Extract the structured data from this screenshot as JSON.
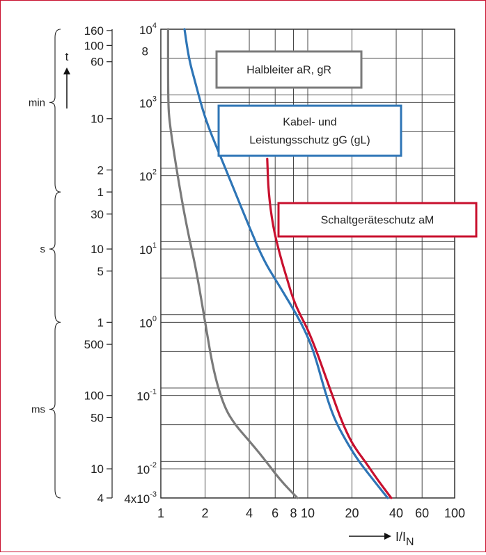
{
  "chart_data": {
    "type": "line",
    "x_scale": "log",
    "y_scale": "log",
    "xlim": [
      1,
      100
    ],
    "ylim": [
      0.004,
      10000
    ],
    "grid": true,
    "xlabel": {
      "base": "I/I",
      "sub": "N"
    },
    "ylabel": "t",
    "x_ticks": [
      "1",
      "2",
      "4",
      "6",
      "8",
      "10",
      "20",
      "40",
      "60",
      "100"
    ],
    "x_tick_values": [
      1,
      2,
      4,
      6,
      8,
      10,
      20,
      40,
      60,
      100
    ],
    "y_power_ticks": [
      {
        "value": 10000,
        "base": "10",
        "exp": "4"
      },
      {
        "value": 1000,
        "base": "10",
        "exp": "3"
      },
      {
        "value": 100,
        "base": "10",
        "exp": "2"
      },
      {
        "value": 10,
        "base": "10",
        "exp": "1"
      },
      {
        "value": 1,
        "base": "10",
        "exp": "0"
      },
      {
        "value": 0.1,
        "base": "10",
        "exp": "-1"
      },
      {
        "value": 0.01,
        "base": "10",
        "exp": "-2"
      },
      {
        "value": 0.004,
        "base": "4x10",
        "exp": "-3"
      }
    ],
    "y_extra_ticks": [
      {
        "value": 5000,
        "label": "8"
      }
    ],
    "time_ticks": [
      {
        "value": 9600,
        "label": "160"
      },
      {
        "value": 6000,
        "label": "100"
      },
      {
        "value": 3600,
        "label": "60"
      },
      {
        "value": 600,
        "label": "10"
      },
      {
        "value": 120,
        "label": "2"
      },
      {
        "value": 60,
        "label": "1"
      },
      {
        "value": 30,
        "label": "30"
      },
      {
        "value": 10,
        "label": "10"
      },
      {
        "value": 5,
        "label": "5"
      },
      {
        "value": 1,
        "label": "1"
      },
      {
        "value": 0.5,
        "label": "500"
      },
      {
        "value": 0.1,
        "label": "100"
      },
      {
        "value": 0.05,
        "label": "50"
      },
      {
        "value": 0.01,
        "label": "10"
      },
      {
        "value": 0.004,
        "label": "4"
      }
    ],
    "unit_groups": [
      {
        "label": "min",
        "from": 10000,
        "to": 60,
        "at": 1000
      },
      {
        "label": "s",
        "from": 60,
        "to": 1,
        "at": 10
      },
      {
        "label": "ms",
        "from": 1,
        "to": 0.004,
        "at": 0.065
      }
    ],
    "series": [
      {
        "name": "Halbleiter aR, gR",
        "color": "#7a7a7a",
        "x": [
          1.12,
          1.12,
          1.15,
          1.3,
          1.5,
          1.75,
          2.0,
          2.3,
          2.7,
          3.2,
          4.0,
          5.0,
          6.5,
          8.5
        ],
        "y": [
          10000,
          1000,
          500,
          100,
          20,
          5,
          1,
          0.2,
          0.07,
          0.04,
          0.024,
          0.014,
          0.007,
          0.004
        ]
      },
      {
        "name": "Kabel- und Leistungsschutz gG (gL)",
        "color": "#2e75b6",
        "x": [
          1.45,
          1.55,
          1.7,
          2.0,
          2.5,
          3.2,
          4.0,
          5.0,
          6.5,
          8.0,
          9.5,
          11.0,
          13.0,
          15.0,
          18.0,
          22.0,
          28.0,
          35.0
        ],
        "y": [
          10000,
          4000,
          2000,
          600,
          200,
          60,
          20,
          7,
          3,
          1.5,
          0.8,
          0.4,
          0.12,
          0.05,
          0.025,
          0.013,
          0.007,
          0.004
        ]
      },
      {
        "name": "Schaltgeräteschutz aM",
        "color": "#c8102e",
        "x": [
          5.3,
          5.4,
          5.8,
          6.5,
          7.2,
          8.0,
          9.0,
          10.0,
          11.5,
          13.0,
          15.0,
          17.0,
          20.0,
          25.0,
          30.0,
          37.0
        ],
        "y": [
          170,
          60,
          20,
          8,
          4,
          2,
          1.2,
          0.8,
          0.4,
          0.2,
          0.09,
          0.045,
          0.022,
          0.012,
          0.007,
          0.004
        ]
      }
    ],
    "annotations": [
      {
        "text": "Halbleiter aR, gR",
        "color": "#7a7a7a",
        "x": 2.5,
        "y": 3000
      },
      {
        "text": "Kabel- und",
        "color": "#2e75b6",
        "x": 6.0,
        "y": 300
      },
      {
        "text": "Leistungsschutz gG (gL)",
        "color": "#2e75b6",
        "x": 6.0,
        "y": 300
      },
      {
        "text": "Schaltgeräteschutz aM",
        "color": "#c8102e",
        "x": 15.0,
        "y": 40
      }
    ]
  }
}
